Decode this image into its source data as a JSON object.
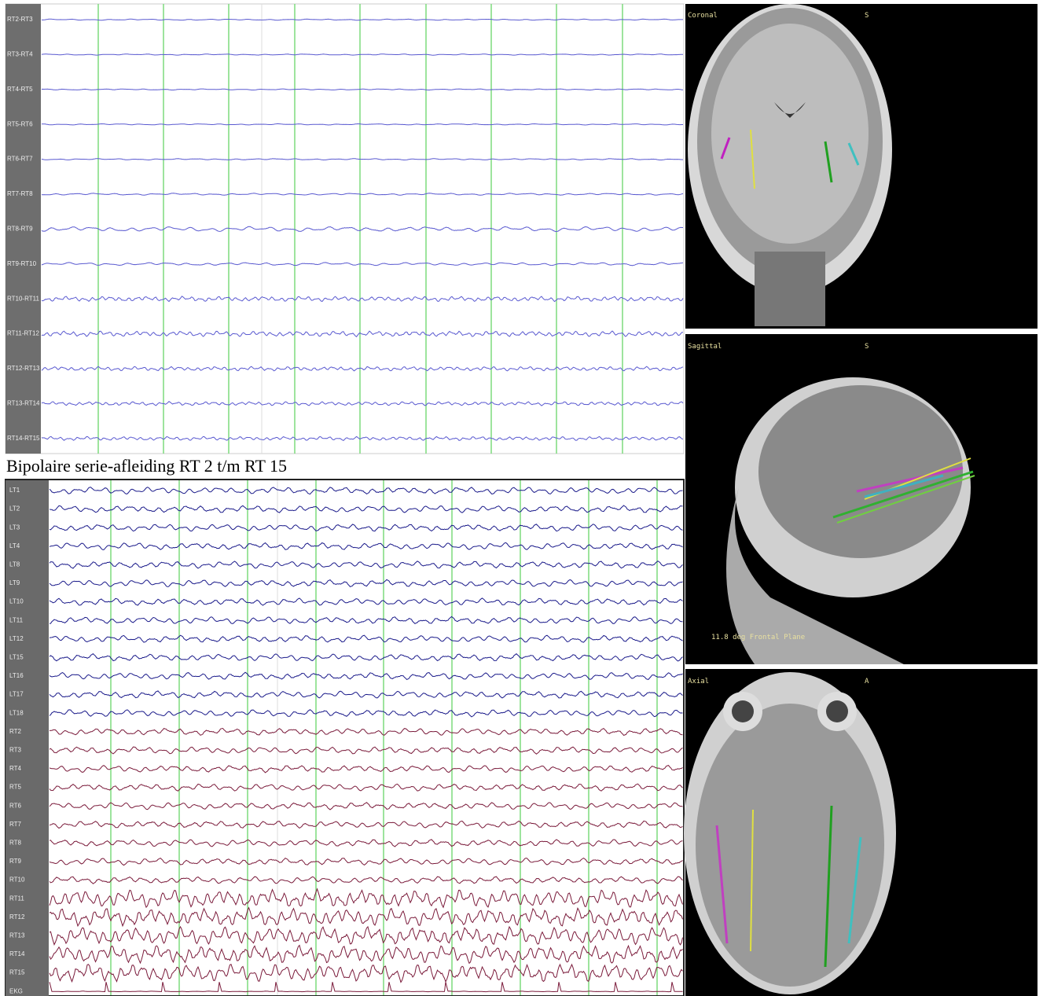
{
  "eeg_top": {
    "channels": [
      "RT2-RT3",
      "RT3-RT4",
      "RT4-RT5",
      "RT5-RT6",
      "RT6-RT7",
      "RT7-RT8",
      "RT8-RT9",
      "RT9-RT10",
      "RT10-RT11",
      "RT11-RT12",
      "RT12-RT13",
      "RT13-RT14",
      "RT14-RT15"
    ]
  },
  "caption": "Bipolaire serie-afleiding RT 2 t/m RT 15",
  "eeg_bottom": {
    "channels": [
      "LT1",
      "LT2",
      "LT3",
      "LT4",
      "LT8",
      "LT9",
      "LT10",
      "LT11",
      "LT12",
      "LT15",
      "LT16",
      "LT17",
      "LT18",
      "RT2",
      "RT3",
      "RT4",
      "RT5",
      "RT6",
      "RT7",
      "RT8",
      "RT9",
      "RT10",
      "RT11",
      "RT12",
      "RT13",
      "RT14",
      "RT15",
      "EKG"
    ]
  },
  "mri": {
    "coronal": {
      "label": "Coronal",
      "orientation": "S"
    },
    "sagittal": {
      "label": "Sagittal",
      "orientation": "S",
      "note": "11.8 deg Frontal Plane"
    },
    "axial": {
      "label": "Axial",
      "orientation": "A"
    }
  }
}
